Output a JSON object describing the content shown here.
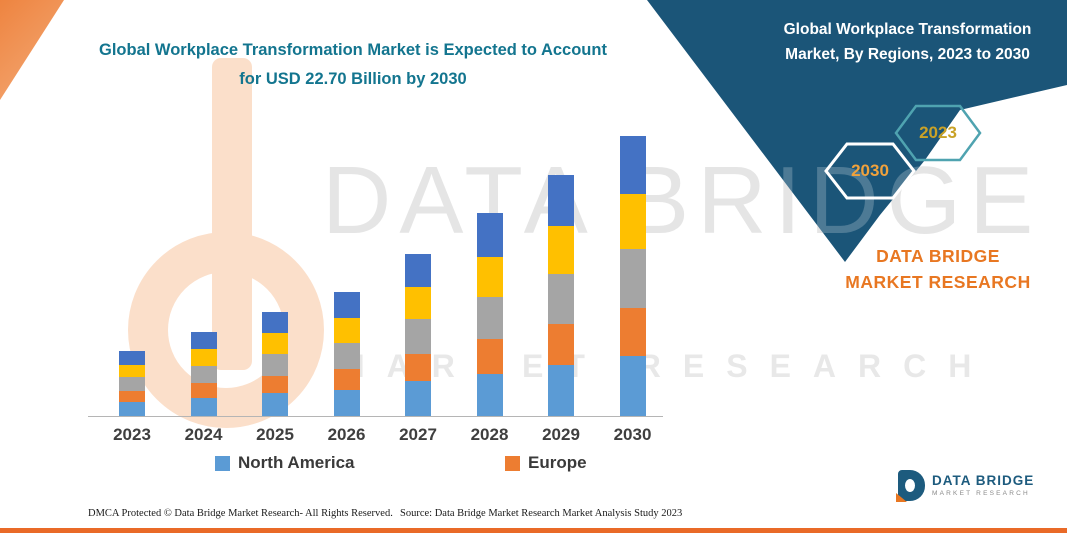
{
  "page": {
    "left_title": "Global Workplace Transformation Market is Expected to Account for USD 22.70 Billion by 2030",
    "banner_title": "Global Workplace Transformation Market, By Regions, 2023 to 2030",
    "brand_text": "DATA BRIDGE MARKET RESEARCH",
    "hexagons": [
      {
        "label": "2030"
      },
      {
        "label": "2023"
      }
    ],
    "watermark_line1": "DATA BRIDGE",
    "watermark_line2": "MARKET RESEARCH",
    "logo": {
      "name": "DATA BRIDGE",
      "tagline": "MARKET RESEARCH"
    },
    "footer": {
      "dmca": "DMCA Protected © Data Bridge Market Research-  All Rights Reserved.",
      "source": "Source: Data Bridge Market Research  Market Analysis Study 2023"
    }
  },
  "colors": {
    "navy_banner": "#1B5578",
    "teal_title": "#13758F",
    "brand_orange": "#E87722",
    "bottom_rule_orange": "#E96A28",
    "hexagon_2030_outline": "#FFFFFF",
    "hexagon_2030_text": "#F0A23C",
    "hexagon_2023_outline": "#4FA3B0",
    "hexagon_2023_text": "#C9A227"
  },
  "chart_data": {
    "type": "bar",
    "stacked": true,
    "title": "Global Workplace Transformation Market is Expected to Account for USD 22.70 Billion by 2030",
    "unit": "USD Billion",
    "categories": [
      "2023",
      "2024",
      "2025",
      "2026",
      "2027",
      "2028",
      "2029",
      "2030"
    ],
    "series": [
      {
        "name": "North America",
        "color": "#5B9BD5",
        "values": [
          1.1,
          1.4,
          1.8,
          2.1,
          2.8,
          3.4,
          4.1,
          4.8
        ]
      },
      {
        "name": "Europe",
        "color": "#ED7D31",
        "values": [
          0.9,
          1.2,
          1.4,
          1.7,
          2.2,
          2.8,
          3.3,
          3.9
        ]
      },
      {
        "name": "",
        "color": "#A5A5A5",
        "values": [
          1.1,
          1.4,
          1.8,
          2.1,
          2.8,
          3.4,
          4.1,
          4.8
        ]
      },
      {
        "name": "",
        "color": "#FFC000",
        "values": [
          1.0,
          1.4,
          1.7,
          2.0,
          2.6,
          3.3,
          3.9,
          4.5
        ]
      },
      {
        "name": "",
        "color": "#4472C4",
        "values": [
          1.1,
          1.4,
          1.7,
          2.1,
          2.7,
          3.5,
          4.1,
          4.7
        ]
      }
    ],
    "totals_estimated": [
      5.2,
      6.8,
      8.4,
      10.0,
      13.1,
      16.4,
      19.5,
      22.7
    ],
    "stated_total_2030": 22.7,
    "legend": [
      {
        "label": "North America",
        "color": "#5B9BD5"
      },
      {
        "label": "Europe",
        "color": "#ED7D31"
      }
    ],
    "x_axis_labels": [
      "2023",
      "2024",
      "2025",
      "2026",
      "2027",
      "2028",
      "2029",
      "2030"
    ],
    "y_axis_visible": false,
    "ylim": [
      0,
      24
    ],
    "gridlines": false,
    "legend_position": "bottom"
  }
}
